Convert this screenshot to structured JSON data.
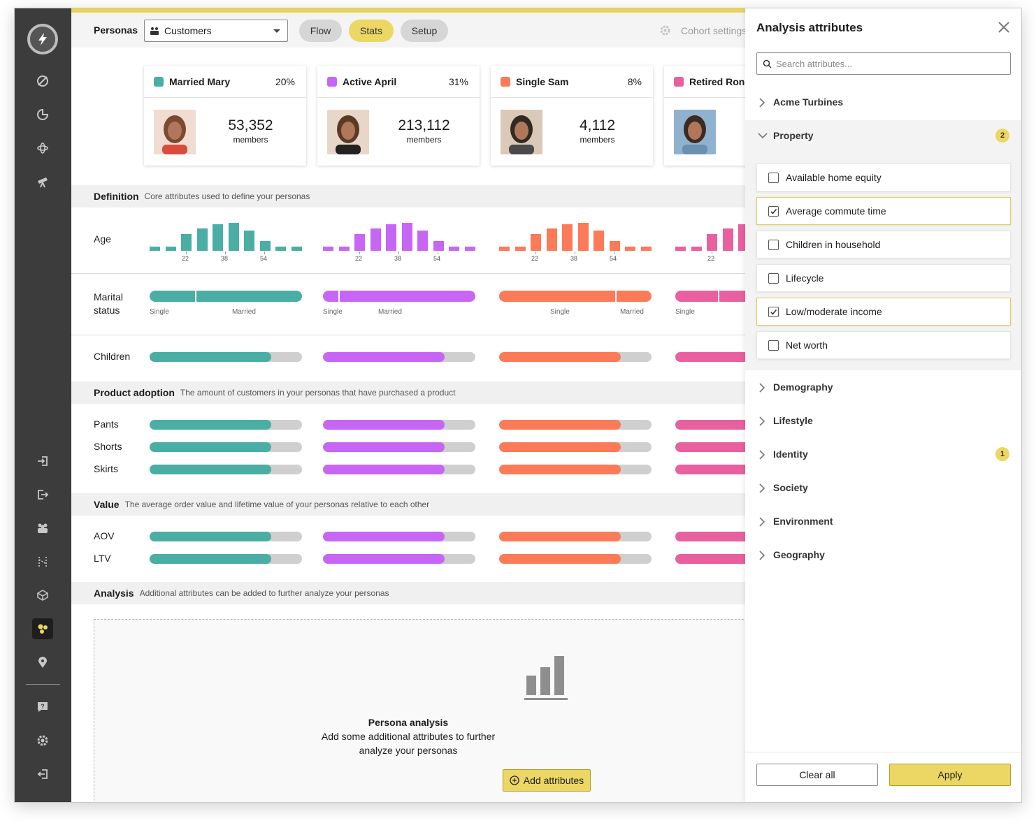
{
  "colors": {
    "teal": "#4aaea4",
    "purple": "#c766f5",
    "orange": "#fb7a58",
    "pink": "#e9609f",
    "accent": "#ecd764"
  },
  "toolbar": {
    "title": "Personas",
    "select_value": "Customers",
    "tabs": [
      "Flow",
      "Stats",
      "Setup"
    ],
    "active_tab": "Stats",
    "cohort": "Cohort settings"
  },
  "personas": [
    {
      "name": "Married Mary",
      "pct": "20%",
      "count": "53,352",
      "unit": "members",
      "color": "teal"
    },
    {
      "name": "Active April",
      "pct": "31%",
      "count": "213,112",
      "unit": "members",
      "color": "purple"
    },
    {
      "name": "Single Sam",
      "pct": "8%",
      "count": "4,112",
      "unit": "members",
      "color": "orange"
    },
    {
      "name": "Retired Ron",
      "pct": "",
      "count": "",
      "unit": "",
      "color": "pink"
    }
  ],
  "sections": {
    "definition": {
      "title": "Definition",
      "desc": "Core attributes used to define your personas"
    },
    "product": {
      "title": "Product adoption",
      "desc": "The amount of customers in your personas that have purchased a product"
    },
    "value": {
      "title": "Value",
      "desc": "The average order value and lifetime value of your personas relative to each other"
    },
    "analysis": {
      "title": "Analysis",
      "desc": "Additional attributes can be added to further analyze your personas"
    }
  },
  "rows": {
    "age": "Age",
    "marital": "Marital status",
    "children": "Children",
    "pants": "Pants",
    "shorts": "Shorts",
    "skirts": "Skirts",
    "aov": "AOV",
    "ltv": "LTV"
  },
  "age_ticks": [
    "22",
    "38",
    "54"
  ],
  "age_hist": [
    0.15,
    0.15,
    0.6,
    0.8,
    0.95,
    1.0,
    0.72,
    0.36,
    0.15,
    0.15
  ],
  "marital_labels": {
    "single": "Single",
    "married": "Married"
  },
  "marital_split": [
    0.3,
    0.1,
    0.76,
    0.28
  ],
  "level": 0.8,
  "placeholder": {
    "title": "Persona analysis",
    "text1": "Add some additional attributes to further",
    "text2": "analyze your personas",
    "button": "Add attributes"
  },
  "panel": {
    "title": "Analysis attributes",
    "search_placeholder": "Search attributes...",
    "acme": "Acme Turbines",
    "property": {
      "label": "Property",
      "badge": "2"
    },
    "options": [
      {
        "label": "Available home equity",
        "checked": false
      },
      {
        "label": "Average commute time",
        "checked": true
      },
      {
        "label": "Children in household",
        "checked": false
      },
      {
        "label": "Lifecycle",
        "checked": false
      },
      {
        "label": "Low/moderate income",
        "checked": true
      },
      {
        "label": "Net worth",
        "checked": false
      }
    ],
    "groups": [
      {
        "label": "Demography",
        "badge": ""
      },
      {
        "label": "Lifestyle",
        "badge": ""
      },
      {
        "label": "Identity",
        "badge": "1"
      },
      {
        "label": "Society",
        "badge": ""
      },
      {
        "label": "Environment",
        "badge": ""
      },
      {
        "label": "Geography",
        "badge": ""
      }
    ],
    "clear": "Clear all",
    "apply": "Apply"
  }
}
